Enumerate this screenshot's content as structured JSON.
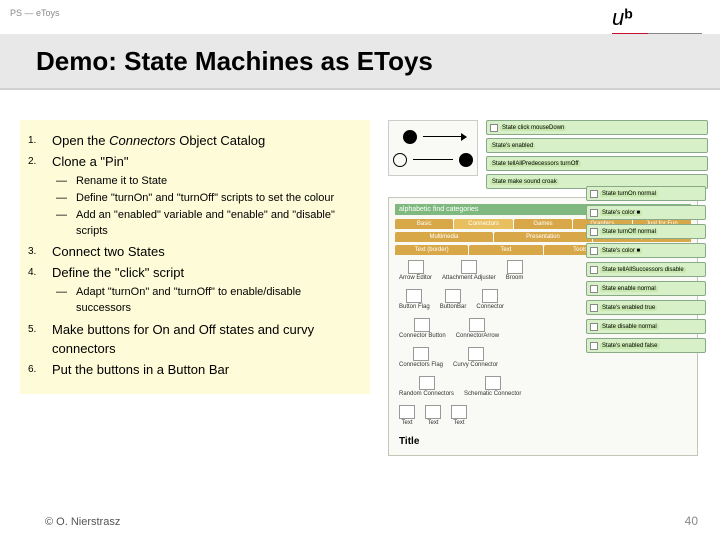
{
  "breadcrumb": "PS — eToys",
  "logo": {
    "u": "u",
    "b": "b",
    "sub1": "UNIVERSITÄT",
    "sub2": "BERN"
  },
  "title": "Demo: State Machines as EToys",
  "steps": [
    {
      "n": "1.",
      "text_pre": "Open the ",
      "text_em": "Connectors",
      "text_post": " Object Catalog"
    },
    {
      "n": "2.",
      "text": "Clone a \"Pin\""
    }
  ],
  "sub1": [
    "Rename it to State",
    "Define \"turnOn\" and \"turnOff\" scripts to set the colour",
    "Add an \"enabled\" variable and \"enable\" and \"disable\" scripts"
  ],
  "steps2": [
    {
      "n": "3.",
      "text": "Connect two States"
    },
    {
      "n": "4.",
      "text": "Define the \"click\" script"
    }
  ],
  "sub2": [
    "Adapt \"turnOn\" and \"turnOff\" to enable/disable successors"
  ],
  "steps3": [
    {
      "n": "5.",
      "text": "Make buttons for On and Off states and curvy connectors"
    },
    {
      "n": "6.",
      "text": "Put the buttons in a Button Bar"
    }
  ],
  "footer": "© O. Nierstrasz",
  "page": "40",
  "tiles_top": [
    "State click  mouseDown",
    "State's enabled",
    "State tellAllPredecessors turnOff",
    "State make sound  croak"
  ],
  "tiles_right": [
    "State turnOn  normal",
    "State's color  ■",
    "State turnOff  normal",
    "State's color  ■",
    "State tellAllSuccessors disable",
    "State enable  normal",
    "State's enabled  true",
    "State disable  normal",
    "State's enabled  false"
  ],
  "catalog": {
    "header": "alphabetic  find  categories",
    "tabs1": [
      "Basic",
      "Connectors",
      "Games",
      "Graphics",
      "Just for Fun"
    ],
    "tabs2": [
      "Multimedia",
      "Presentation",
      "Scripting"
    ],
    "tabs3": [
      "Text (border)",
      "Text",
      "Tools",
      "(head)"
    ],
    "rows": [
      [
        "Arrow Editor",
        "Attachment Adjuster",
        "Broom"
      ],
      [
        "Button Flag",
        "ButtonBar",
        "Connector"
      ],
      [
        "Connector Button",
        "ConnectorArrow"
      ],
      [
        "Connectors Flag",
        "Curvy Connector"
      ],
      [
        "Random Connectors",
        "Schematic Connector"
      ],
      [
        "Text",
        "Text",
        "Text"
      ]
    ],
    "title": "Title"
  }
}
